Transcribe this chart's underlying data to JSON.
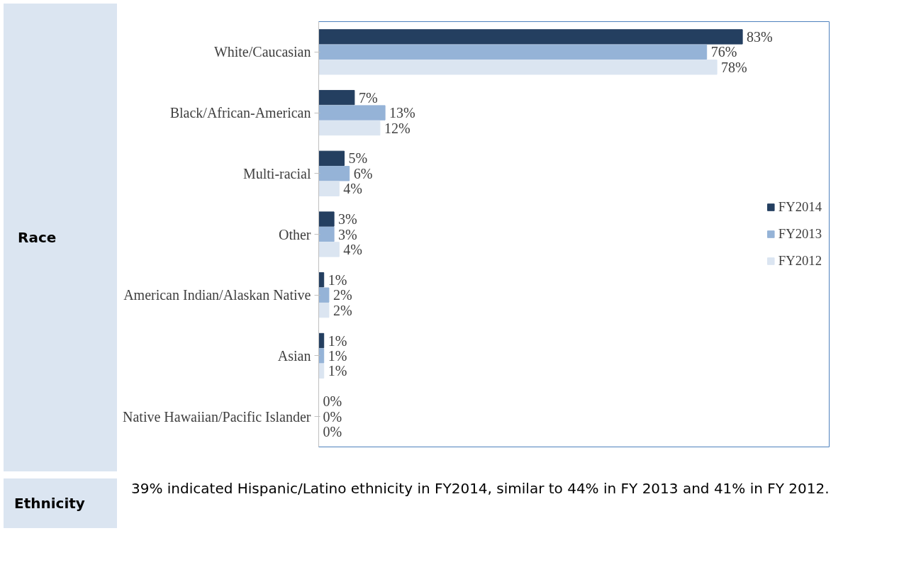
{
  "chart_data": {
    "type": "bar",
    "orientation": "horizontal",
    "categories": [
      "White/Caucasian",
      "Black/African-American",
      "Multi-racial",
      "Other",
      "American Indian/Alaskan Native",
      "Asian",
      "Native Hawaiian/Pacific Islander"
    ],
    "series": [
      {
        "name": "FY2014",
        "color": "#243f60",
        "values": [
          83,
          7,
          5,
          3,
          1,
          1,
          0
        ],
        "value_labels": [
          "83%",
          "7%",
          "5%",
          "3%",
          "1%",
          "1%",
          "0%"
        ]
      },
      {
        "name": "FY2013",
        "color": "#95b3d7",
        "values": [
          76,
          13,
          6,
          3,
          2,
          1,
          0
        ],
        "value_labels": [
          "76%",
          "13%",
          "6%",
          "3%",
          "2%",
          "1%",
          "0%"
        ]
      },
      {
        "name": "FY2012",
        "color": "#dbe5f1",
        "values": [
          78,
          12,
          4,
          4,
          2,
          1,
          0
        ],
        "value_labels": [
          "78%",
          "12%",
          "4%",
          "4%",
          "2%",
          "1%",
          "0%"
        ]
      }
    ],
    "xlim": [
      0,
      100
    ],
    "tick_labels": "y",
    "grid": false,
    "legend": "right",
    "annotations": [
      "Race",
      "Ethnicity",
      "39% indicated Hispanic/Latino ethnicity in FY2014, similar to 44% in FY 2013 and 41% in FY 2012."
    ]
  }
}
